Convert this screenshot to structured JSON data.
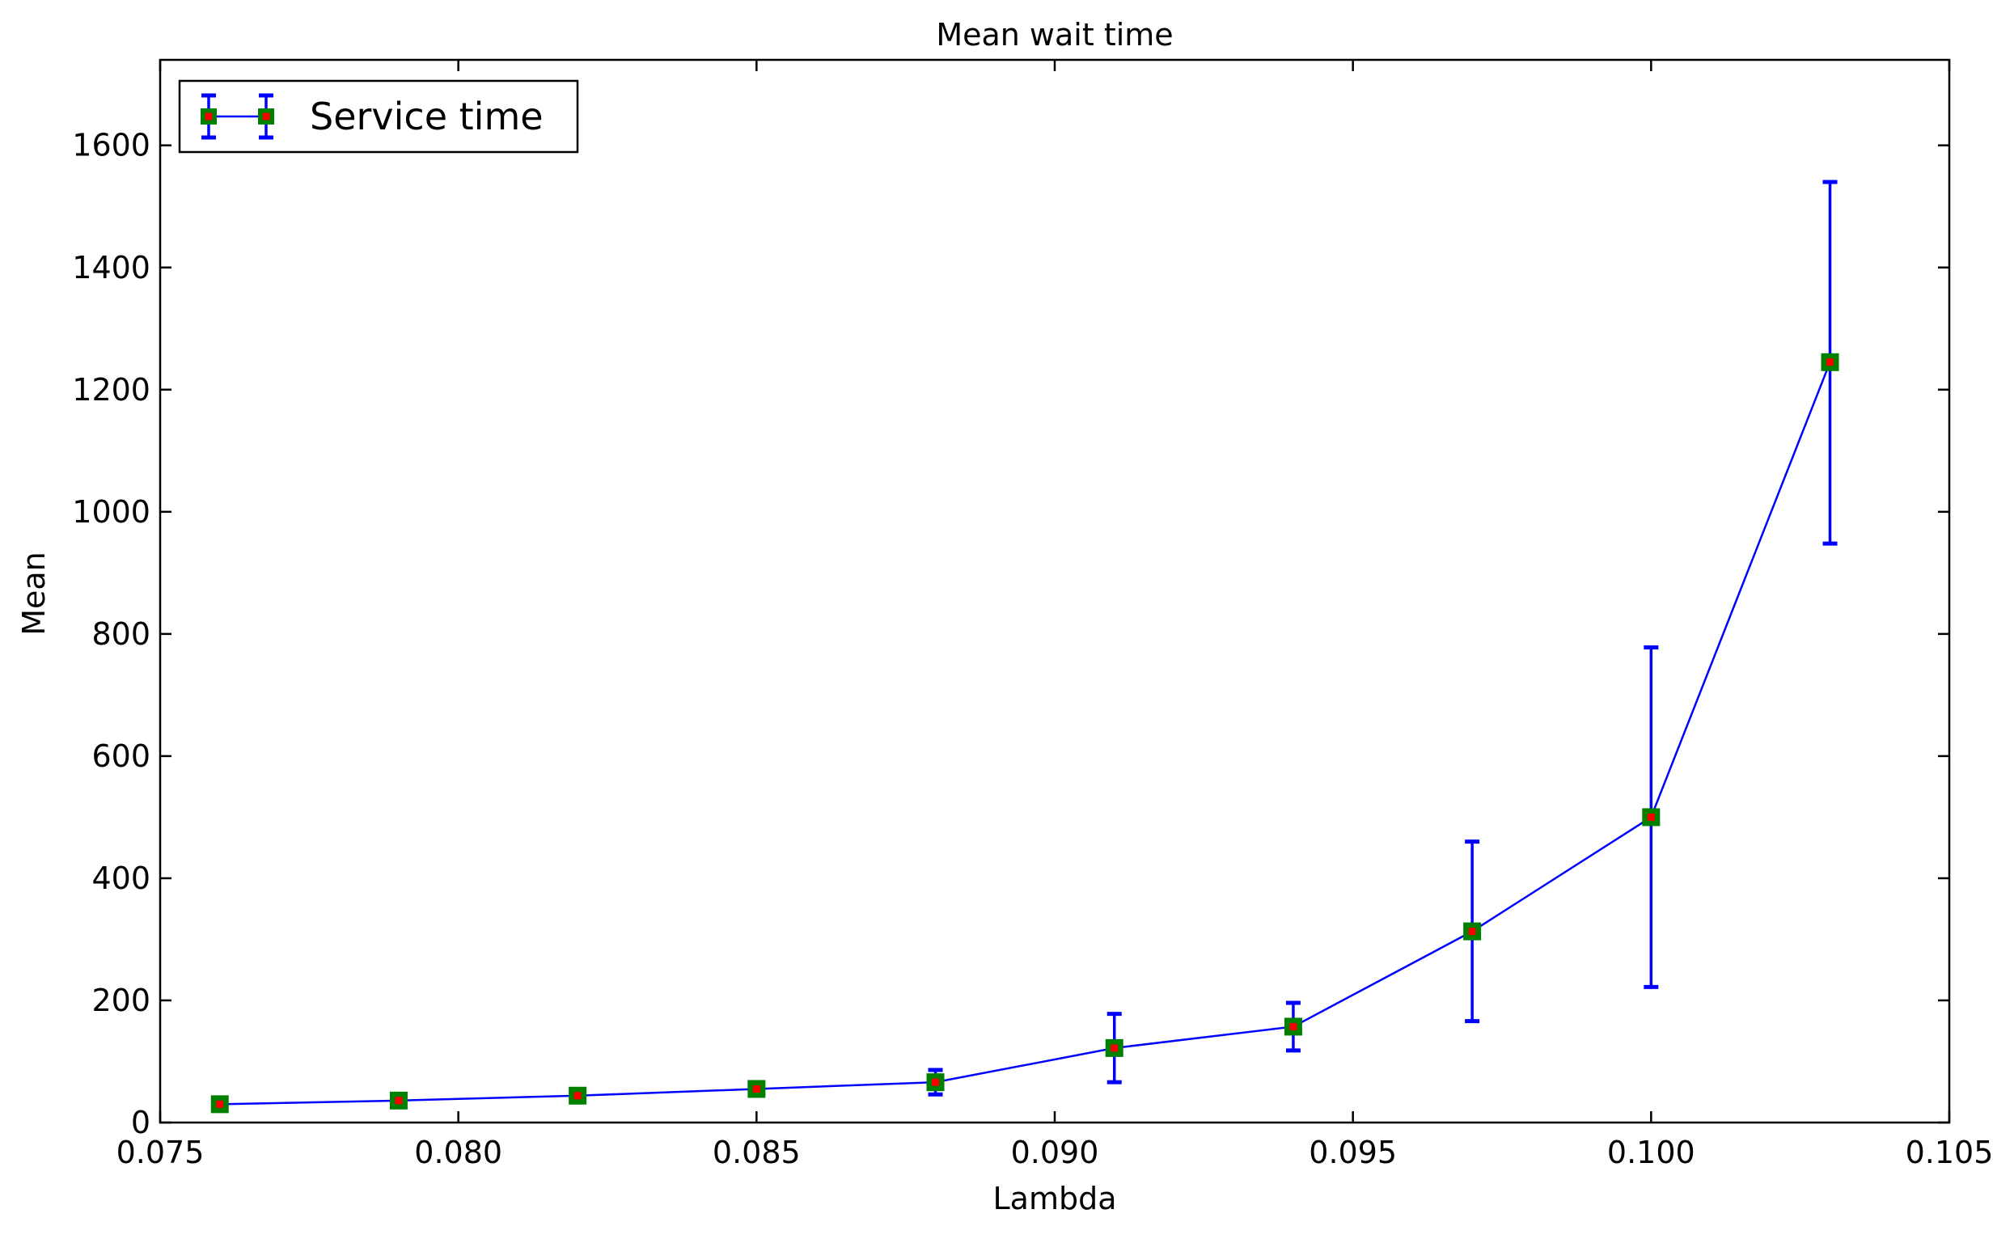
{
  "chart_data": {
    "type": "line",
    "title": "Mean wait time",
    "xlabel": "Lambda",
    "ylabel": "Mean",
    "xlim": [
      0.075,
      0.105
    ],
    "ylim": [
      0,
      1740
    ],
    "xticks": [
      0.075,
      0.08,
      0.085,
      0.09,
      0.095,
      0.1,
      0.105
    ],
    "xtick_labels": [
      "0.075",
      "0.080",
      "0.085",
      "0.090",
      "0.095",
      "0.100",
      "0.105"
    ],
    "yticks": [
      0,
      200,
      400,
      600,
      800,
      1000,
      1200,
      1400,
      1600
    ],
    "ytick_labels": [
      "0",
      "200",
      "400",
      "600",
      "800",
      "1000",
      "1200",
      "1400",
      "1600"
    ],
    "grid": false,
    "legend_position": "top-left",
    "series": [
      {
        "name": "Service time",
        "line_color": "#0000ff",
        "marker": "square",
        "marker_face_color": "#008000",
        "marker_inner_color": "#ff0000",
        "errorbar_color": "#0000ff",
        "x": [
          0.076,
          0.079,
          0.082,
          0.085,
          0.088,
          0.091,
          0.094,
          0.097,
          0.1,
          0.103
        ],
        "y": [
          30,
          36,
          44,
          55,
          66,
          122,
          157,
          313,
          500,
          1245
        ],
        "y_lower": [
          30,
          36,
          44,
          55,
          46,
          66,
          118,
          166,
          222,
          948
        ],
        "y_upper": [
          30,
          36,
          44,
          55,
          86,
          178,
          196,
          460,
          778,
          1540
        ]
      }
    ]
  }
}
